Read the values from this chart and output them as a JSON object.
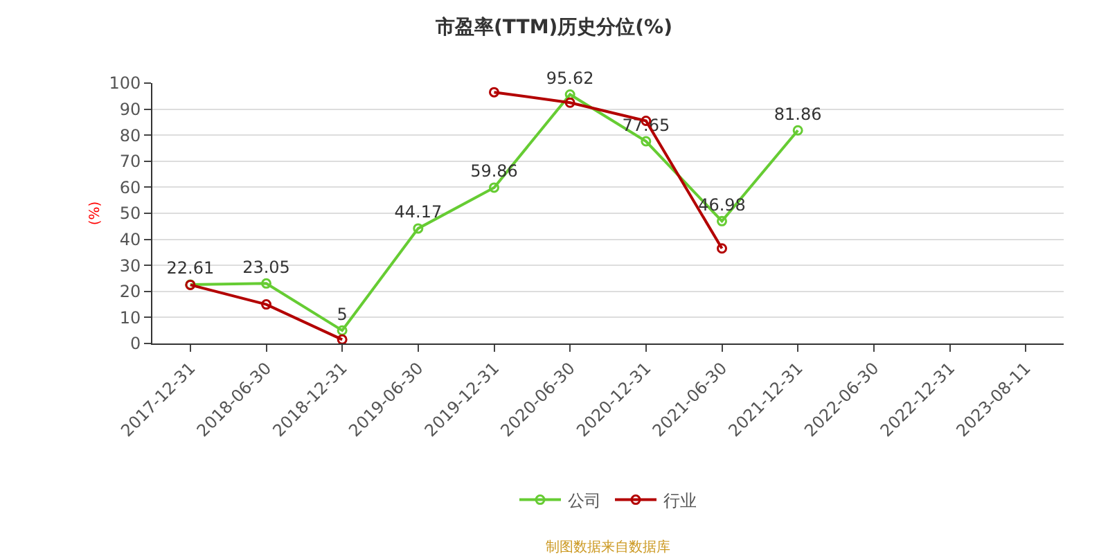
{
  "chart_data": {
    "type": "line",
    "title": "市盈率(TTM)历史分位(%)",
    "ylabel": "(%)",
    "categories": [
      "2017-12-31",
      "2018-06-30",
      "2018-12-31",
      "2019-06-30",
      "2019-12-31",
      "2020-06-30",
      "2020-12-31",
      "2021-06-30",
      "2021-12-31",
      "2022-06-30",
      "2022-12-31",
      "2023-08-11"
    ],
    "series": [
      {
        "name": "公司",
        "color": "#66cc33",
        "values": [
          22.61,
          23.05,
          5,
          44.17,
          59.86,
          95.62,
          77.65,
          46.98,
          81.86,
          null,
          null,
          null
        ],
        "value_labels": [
          "22.61",
          "23.05",
          "5",
          "44.17",
          "59.86",
          "95.62",
          "77.65",
          "46.98",
          "81.86",
          null,
          null,
          null
        ]
      },
      {
        "name": "行业",
        "color": "#b30000",
        "values": [
          22.5,
          15,
          1.5,
          null,
          96.5,
          92.5,
          85.5,
          36.5,
          null,
          null,
          null,
          null
        ]
      }
    ],
    "ylim": [
      0,
      100
    ],
    "yticks": [
      0,
      10,
      20,
      30,
      40,
      50,
      60,
      70,
      80,
      90,
      100
    ],
    "grid": "y",
    "legend": "bottom",
    "marker": "circle",
    "line_style": "solid",
    "annotations": [
      "制图数据来自数据库"
    ]
  }
}
